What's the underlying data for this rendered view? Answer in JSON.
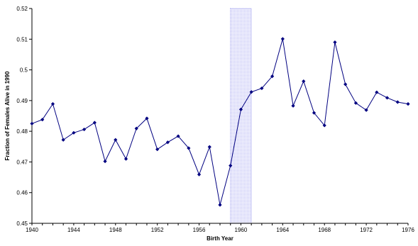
{
  "chart_data": {
    "type": "line",
    "title": "",
    "xlabel": "Birth Year",
    "ylabel": "Fraction of Females Alive in 1990",
    "xlim": [
      1940,
      1976
    ],
    "ylim": [
      0.45,
      0.52
    ],
    "xticks": [
      1940,
      1944,
      1948,
      1952,
      1956,
      1960,
      1964,
      1968,
      1972,
      1976
    ],
    "xtick_labels": [
      "1940",
      "1944",
      "1948",
      "1952",
      "1956",
      "1960",
      "1964",
      "1968",
      "1972",
      "1976"
    ],
    "yticks": [
      0.45,
      0.46,
      0.47,
      0.48,
      0.49,
      0.5,
      0.51,
      0.52
    ],
    "ytick_labels": [
      "0.45",
      "0.46",
      "0.47",
      "0.48",
      "0.49",
      "0.5",
      "0.51",
      "0.52"
    ],
    "grid": false,
    "legend": "none",
    "shaded_region": {
      "x_start": 1959,
      "x_end": 1961,
      "color": "#9999ee"
    },
    "series": [
      {
        "color": "#000080",
        "marker": "diamond",
        "x": [
          1940,
          1941,
          1942,
          1943,
          1944,
          1945,
          1946,
          1947,
          1948,
          1949,
          1950,
          1951,
          1952,
          1953,
          1954,
          1955,
          1956,
          1957,
          1958,
          1959,
          1960,
          1961,
          1962,
          1963,
          1964,
          1965,
          1966,
          1967,
          1968,
          1969,
          1970,
          1971,
          1972,
          1973,
          1974,
          1975,
          1976
        ],
        "y": [
          0.4825,
          0.4838,
          0.4889,
          0.4772,
          0.4795,
          0.4806,
          0.4828,
          0.4702,
          0.4772,
          0.471,
          0.4809,
          0.4842,
          0.4741,
          0.4764,
          0.4784,
          0.4745,
          0.4659,
          0.4749,
          0.456,
          0.4688,
          0.4871,
          0.4928,
          0.494,
          0.4979,
          0.5101,
          0.4883,
          0.4963,
          0.486,
          0.4819,
          0.509,
          0.4953,
          0.4892,
          0.4869,
          0.4927,
          0.4909,
          0.4895,
          0.4889
        ]
      }
    ]
  }
}
